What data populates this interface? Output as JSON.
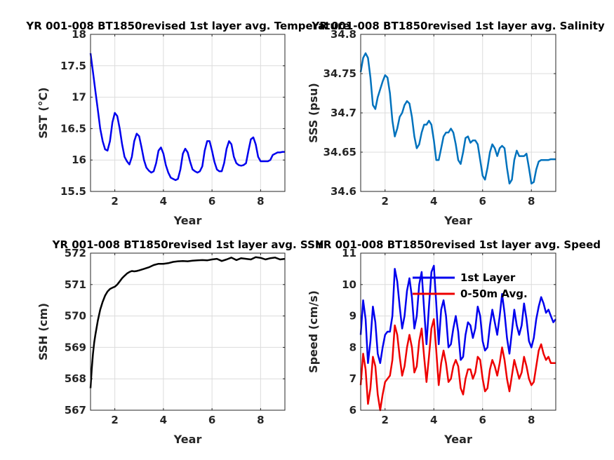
{
  "chart_data": [
    {
      "type": "line",
      "title": "YR 001-008 BT1850revised 1st layer avg. Temperature",
      "xlabel": "Year",
      "ylabel": "SST (°C)",
      "xlim": [
        1,
        9
      ],
      "ylim": [
        15.5,
        18
      ],
      "xticks": [
        2,
        4,
        6,
        8
      ],
      "yticks": [
        15.5,
        16,
        16.5,
        17,
        17.5,
        18
      ],
      "grid": true,
      "series": [
        {
          "color": "#0000ee",
          "x": [
            1.0,
            1.1,
            1.2,
            1.3,
            1.4,
            1.5,
            1.6,
            1.7,
            1.8,
            1.9,
            2.0,
            2.1,
            2.2,
            2.3,
            2.4,
            2.5,
            2.6,
            2.7,
            2.8,
            2.9,
            3.0,
            3.1,
            3.2,
            3.3,
            3.4,
            3.5,
            3.6,
            3.7,
            3.8,
            3.9,
            4.0,
            4.1,
            4.2,
            4.3,
            4.4,
            4.5,
            4.6,
            4.7,
            4.8,
            4.9,
            5.0,
            5.1,
            5.2,
            5.3,
            5.4,
            5.5,
            5.6,
            5.7,
            5.8,
            5.9,
            6.0,
            6.1,
            6.2,
            6.3,
            6.4,
            6.5,
            6.6,
            6.7,
            6.8,
            6.9,
            7.0,
            7.1,
            7.2,
            7.3,
            7.4,
            7.5,
            7.6,
            7.7,
            7.8,
            7.9,
            8.0,
            8.1,
            8.2,
            8.3,
            8.4,
            8.5,
            8.6,
            8.7,
            8.8,
            8.9,
            9.0
          ],
          "y": [
            17.7,
            17.4,
            17.1,
            16.8,
            16.5,
            16.3,
            16.17,
            16.15,
            16.3,
            16.6,
            16.75,
            16.7,
            16.5,
            16.25,
            16.05,
            15.98,
            15.93,
            16.05,
            16.3,
            16.42,
            16.38,
            16.2,
            16.0,
            15.88,
            15.83,
            15.8,
            15.82,
            15.95,
            16.15,
            16.2,
            16.1,
            15.92,
            15.8,
            15.72,
            15.7,
            15.68,
            15.7,
            15.85,
            16.1,
            16.18,
            16.12,
            15.97,
            15.85,
            15.82,
            15.8,
            15.82,
            15.9,
            16.15,
            16.3,
            16.3,
            16.15,
            15.97,
            15.85,
            15.82,
            15.82,
            15.95,
            16.18,
            16.3,
            16.25,
            16.05,
            15.95,
            15.92,
            15.91,
            15.92,
            15.95,
            16.15,
            16.33,
            16.36,
            16.25,
            16.05,
            15.98,
            15.98,
            15.98,
            15.98,
            16.0,
            16.08,
            16.1,
            16.12,
            16.12,
            16.13,
            16.13
          ]
        }
      ]
    },
    {
      "type": "line",
      "title": "YR 001-008 BT1850revised 1st layer avg. Salinity",
      "xlabel": "Year",
      "ylabel": "SSS (psu)",
      "xlim": [
        1,
        9
      ],
      "ylim": [
        34.6,
        34.8
      ],
      "xticks": [
        2,
        4,
        6,
        8
      ],
      "yticks": [
        34.6,
        34.65,
        34.7,
        34.75,
        34.8
      ],
      "grid": true,
      "series": [
        {
          "color": "#0072bd",
          "x": [
            1.0,
            1.1,
            1.2,
            1.3,
            1.4,
            1.5,
            1.6,
            1.7,
            1.8,
            1.9,
            2.0,
            2.1,
            2.2,
            2.3,
            2.4,
            2.5,
            2.6,
            2.7,
            2.8,
            2.9,
            3.0,
            3.1,
            3.2,
            3.3,
            3.4,
            3.5,
            3.6,
            3.7,
            3.8,
            3.9,
            4.0,
            4.1,
            4.2,
            4.3,
            4.4,
            4.5,
            4.6,
            4.7,
            4.8,
            4.9,
            5.0,
            5.1,
            5.2,
            5.3,
            5.4,
            5.5,
            5.6,
            5.7,
            5.8,
            5.9,
            6.0,
            6.1,
            6.2,
            6.3,
            6.4,
            6.5,
            6.6,
            6.7,
            6.8,
            6.9,
            7.0,
            7.1,
            7.2,
            7.3,
            7.4,
            7.5,
            7.6,
            7.7,
            7.8,
            7.9,
            8.0,
            8.1,
            8.2,
            8.3,
            8.4,
            8.5,
            8.6,
            8.7,
            8.8,
            8.9,
            9.0
          ],
          "y": [
            34.752,
            34.77,
            34.776,
            34.77,
            34.745,
            34.71,
            34.705,
            34.72,
            34.73,
            34.74,
            34.748,
            34.745,
            34.725,
            34.69,
            34.67,
            34.68,
            34.695,
            34.7,
            34.71,
            34.715,
            34.712,
            34.695,
            34.67,
            34.655,
            34.66,
            34.675,
            34.685,
            34.685,
            34.69,
            34.685,
            34.665,
            34.64,
            34.64,
            34.655,
            34.67,
            34.675,
            34.675,
            34.68,
            34.675,
            34.66,
            34.64,
            34.635,
            34.65,
            34.668,
            34.67,
            34.662,
            34.665,
            34.665,
            34.66,
            34.64,
            34.62,
            34.615,
            34.63,
            34.65,
            34.66,
            34.655,
            34.645,
            34.655,
            34.658,
            34.655,
            34.63,
            34.61,
            34.615,
            34.64,
            34.652,
            34.645,
            34.645,
            34.645,
            34.648,
            34.63,
            34.61,
            34.612,
            34.628,
            34.638,
            34.64,
            34.64,
            34.64,
            34.64,
            34.641,
            34.641,
            34.641
          ]
        }
      ]
    },
    {
      "type": "line",
      "title": "YR 001-008 BT1850revised 1st layer avg. SSH",
      "xlabel": "Year",
      "ylabel": "SSH (cm)",
      "xlim": [
        1,
        9
      ],
      "ylim": [
        567,
        572
      ],
      "xticks": [
        2,
        4,
        6,
        8
      ],
      "yticks": [
        567,
        568,
        569,
        570,
        571,
        572
      ],
      "grid": true,
      "series": [
        {
          "color": "#000000",
          "x": [
            1.0,
            1.05,
            1.1,
            1.15,
            1.2,
            1.3,
            1.4,
            1.5,
            1.6,
            1.7,
            1.8,
            1.9,
            2.0,
            2.1,
            2.2,
            2.3,
            2.4,
            2.5,
            2.6,
            2.7,
            2.8,
            2.9,
            3.0,
            3.2,
            3.4,
            3.6,
            3.8,
            4.0,
            4.2,
            4.4,
            4.6,
            4.8,
            5.0,
            5.2,
            5.4,
            5.6,
            5.8,
            6.0,
            6.2,
            6.4,
            6.6,
            6.8,
            7.0,
            7.2,
            7.4,
            7.6,
            7.8,
            8.0,
            8.2,
            8.4,
            8.6,
            8.8,
            9.0
          ],
          "y": [
            567.7,
            568.3,
            568.8,
            569.15,
            569.4,
            569.85,
            570.2,
            570.45,
            570.65,
            570.78,
            570.86,
            570.9,
            570.93,
            571.0,
            571.1,
            571.2,
            571.28,
            571.35,
            571.4,
            571.43,
            571.42,
            571.43,
            571.45,
            571.5,
            571.55,
            571.62,
            571.66,
            571.66,
            571.68,
            571.72,
            571.74,
            571.75,
            571.74,
            571.76,
            571.77,
            571.78,
            571.77,
            571.8,
            571.82,
            571.75,
            571.8,
            571.86,
            571.78,
            571.84,
            571.82,
            571.8,
            571.87,
            571.85,
            571.8,
            571.84,
            571.86,
            571.8,
            571.82
          ]
        }
      ]
    },
    {
      "type": "line",
      "title": "YR 001-008 BT1850revised 1st layer avg. Speed",
      "xlabel": "Year",
      "ylabel": "Speed (cm/s)",
      "xlim": [
        1,
        9
      ],
      "ylim": [
        6,
        11
      ],
      "xticks": [
        2,
        4,
        6,
        8
      ],
      "yticks": [
        6,
        7,
        8,
        9,
        10,
        11
      ],
      "grid": true,
      "legend": "top-left",
      "series": [
        {
          "name": "1st Layer",
          "color": "#0000ee",
          "x": [
            1.0,
            1.1,
            1.2,
            1.3,
            1.4,
            1.5,
            1.6,
            1.7,
            1.8,
            1.9,
            2.0,
            2.1,
            2.2,
            2.3,
            2.4,
            2.5,
            2.6,
            2.7,
            2.8,
            2.9,
            3.0,
            3.1,
            3.2,
            3.3,
            3.4,
            3.5,
            3.6,
            3.7,
            3.8,
            3.9,
            4.0,
            4.1,
            4.2,
            4.3,
            4.4,
            4.5,
            4.6,
            4.7,
            4.8,
            4.9,
            5.0,
            5.1,
            5.2,
            5.3,
            5.4,
            5.5,
            5.6,
            5.7,
            5.8,
            5.9,
            6.0,
            6.1,
            6.2,
            6.3,
            6.4,
            6.5,
            6.6,
            6.7,
            6.8,
            6.9,
            7.0,
            7.1,
            7.2,
            7.3,
            7.4,
            7.5,
            7.6,
            7.7,
            7.8,
            7.9,
            8.0,
            8.1,
            8.2,
            8.3,
            8.4,
            8.5,
            8.6,
            8.7,
            8.8,
            8.9,
            9.0
          ],
          "y": [
            8.4,
            9.5,
            8.9,
            7.5,
            8.2,
            9.3,
            8.8,
            7.8,
            7.5,
            8.0,
            8.4,
            8.5,
            8.5,
            9.0,
            10.5,
            10.1,
            9.3,
            8.6,
            9.0,
            9.8,
            10.2,
            9.6,
            8.6,
            9.0,
            10.0,
            10.4,
            9.2,
            8.1,
            9.3,
            10.4,
            10.6,
            9.4,
            8.1,
            9.2,
            9.5,
            9.0,
            8.0,
            8.1,
            8.6,
            9.0,
            8.5,
            7.6,
            7.7,
            8.4,
            8.8,
            8.7,
            8.3,
            8.6,
            9.3,
            9.0,
            8.2,
            7.9,
            8.0,
            8.7,
            9.2,
            8.8,
            8.4,
            9.0,
            9.7,
            9.1,
            8.3,
            7.8,
            8.5,
            9.2,
            8.7,
            8.4,
            8.7,
            9.4,
            8.9,
            8.2,
            8.0,
            8.3,
            8.9,
            9.3,
            9.6,
            9.4,
            9.1,
            9.2,
            9.0,
            8.8,
            8.9
          ]
        },
        {
          "name": "0-50m Avg.",
          "color": "#ee0000",
          "x": [
            1.0,
            1.1,
            1.2,
            1.3,
            1.4,
            1.5,
            1.6,
            1.7,
            1.8,
            1.9,
            2.0,
            2.1,
            2.2,
            2.3,
            2.4,
            2.5,
            2.6,
            2.7,
            2.8,
            2.9,
            3.0,
            3.1,
            3.2,
            3.3,
            3.4,
            3.5,
            3.6,
            3.7,
            3.8,
            3.9,
            4.0,
            4.1,
            4.2,
            4.3,
            4.4,
            4.5,
            4.6,
            4.7,
            4.8,
            4.9,
            5.0,
            5.1,
            5.2,
            5.3,
            5.4,
            5.5,
            5.6,
            5.7,
            5.8,
            5.9,
            6.0,
            6.1,
            6.2,
            6.3,
            6.4,
            6.5,
            6.6,
            6.7,
            6.8,
            6.9,
            7.0,
            7.1,
            7.2,
            7.3,
            7.4,
            7.5,
            7.6,
            7.7,
            7.8,
            7.9,
            8.0,
            8.1,
            8.2,
            8.3,
            8.4,
            8.5,
            8.6,
            8.7,
            8.8,
            8.9,
            9.0
          ],
          "y": [
            6.8,
            7.8,
            7.3,
            6.2,
            6.7,
            7.7,
            7.4,
            6.5,
            6.0,
            6.5,
            6.9,
            7.0,
            7.1,
            7.6,
            8.7,
            8.4,
            7.7,
            7.1,
            7.4,
            8.0,
            8.4,
            8.0,
            7.2,
            7.4,
            8.2,
            8.6,
            7.7,
            6.9,
            7.7,
            8.6,
            8.9,
            7.9,
            6.8,
            7.5,
            7.9,
            7.5,
            6.9,
            7.0,
            7.4,
            7.6,
            7.4,
            6.7,
            6.5,
            7.0,
            7.3,
            7.3,
            7.0,
            7.2,
            7.7,
            7.6,
            7.0,
            6.6,
            6.7,
            7.3,
            7.6,
            7.4,
            7.1,
            7.5,
            8.0,
            7.6,
            7.0,
            6.6,
            7.1,
            7.6,
            7.3,
            7.0,
            7.2,
            7.7,
            7.4,
            7.0,
            6.8,
            6.9,
            7.4,
            7.9,
            8.1,
            7.8,
            7.6,
            7.7,
            7.5,
            7.5,
            7.5
          ]
        }
      ]
    }
  ]
}
